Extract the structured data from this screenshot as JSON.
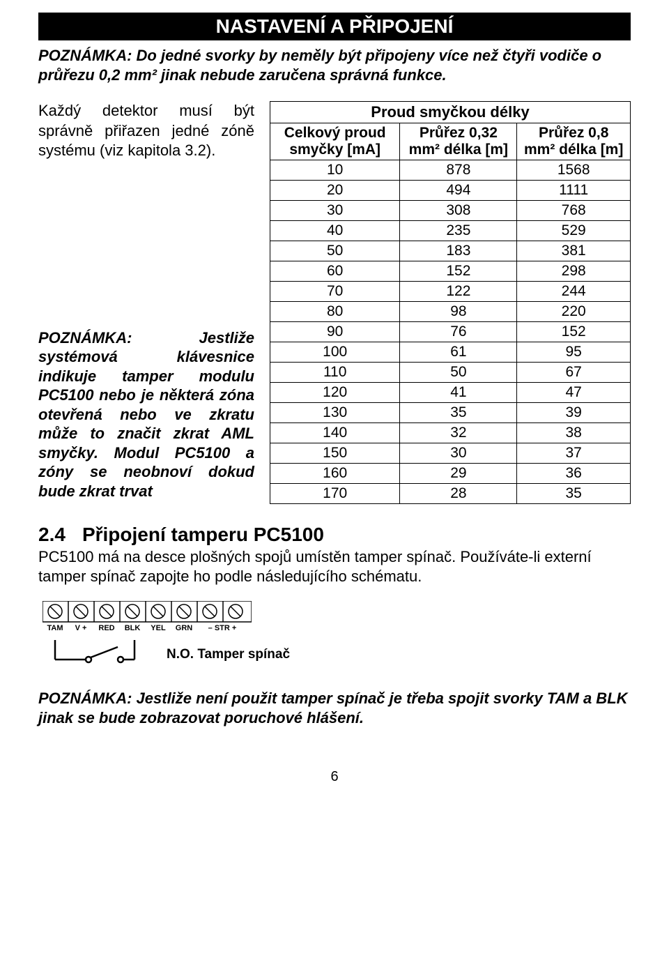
{
  "header": "NASTAVENÍ A PŘIPOJENÍ",
  "note1": "POZNÁMKA: Do jedné svorky by neměly být připojeny více než čtyři vodiče o průřezu 0,2 mm² jinak nebude zaručena správná funkce.",
  "para1": "Každý detektor musí být správně přiřazen jedné zóně systému (viz kapitola 3.2).",
  "para2": "POZNÁMKA: Jestliže systémová klávesnice indikuje tamper modulu PC5100 nebo je některá zóna otevřená nebo ve zkratu může to značit zkrat AML smyčky. Modul PC5100 a zóny se neobnoví dokud bude zkrat trvat",
  "table": {
    "sup_title": "Proud smyčkou délky",
    "col1": "Celkový proud smyčky [mA]",
    "col2": "Průřez 0,32 mm² délka [m]",
    "col3": "Průřez 0,8 mm² délka [m]",
    "rows": [
      [
        "10",
        "878",
        "1568"
      ],
      [
        "20",
        "494",
        "1111"
      ],
      [
        "30",
        "308",
        "768"
      ],
      [
        "40",
        "235",
        "529"
      ],
      [
        "50",
        "183",
        "381"
      ],
      [
        "60",
        "152",
        "298"
      ],
      [
        "70",
        "122",
        "244"
      ],
      [
        "80",
        "98",
        "220"
      ],
      [
        "90",
        "76",
        "152"
      ],
      [
        "100",
        "61",
        "95"
      ],
      [
        "110",
        "50",
        "67"
      ],
      [
        "120",
        "41",
        "47"
      ],
      [
        "130",
        "35",
        "39"
      ],
      [
        "140",
        "32",
        "38"
      ],
      [
        "150",
        "30",
        "37"
      ],
      [
        "160",
        "29",
        "36"
      ],
      [
        "170",
        "28",
        "35"
      ]
    ]
  },
  "section": {
    "num": "2.4",
    "title": "Připojení tamperu PC5100"
  },
  "para3": "PC5100 má na desce plošných spojů umístěn tamper spínač. Používáte-li externí tamper spínač zapojte ho podle následujícího schématu.",
  "terminals": [
    "TAM",
    "V +",
    "RED",
    "BLK",
    "YEL",
    "GRN",
    "– STR +"
  ],
  "switch_label": "N.O. Tamper spínač",
  "note3": "POZNÁMKA: Jestliže není použit tamper spínač je třeba spojit svorky TAM a BLK jinak se bude zobrazovat poruchové hlášení.",
  "page": "6"
}
